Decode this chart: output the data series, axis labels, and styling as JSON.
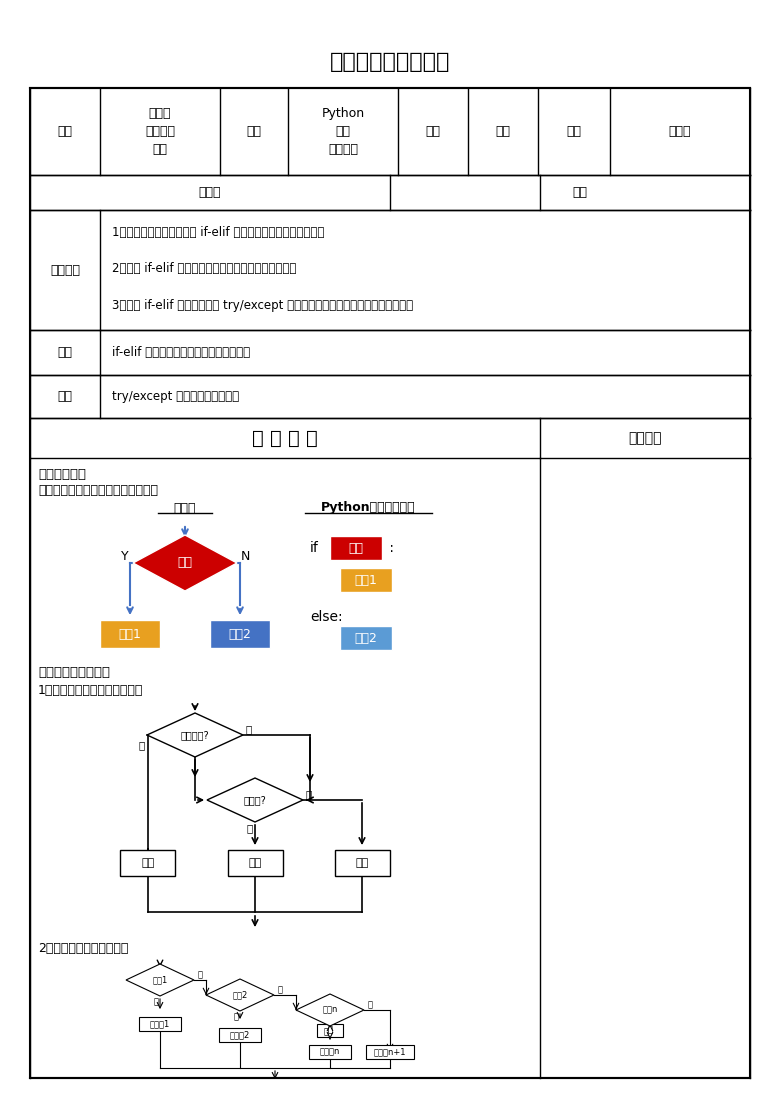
{
  "title": "多分支结构程序设计",
  "cells_r1": [
    "课题",
    "多分支\n结构程序\n设计",
    "单元",
    "Python\n程序\n基本结构",
    "学科",
    "信息",
    "年级",
    "八年级"
  ],
  "teaching_goals": [
    "1、了解多分支结构，理解 if-elif 条件语句的格式和执行流程。",
    "2、理解 if-elif 条件语句解决问题的一般步骤和方法。",
    "3、理解 if-elif 条件语句中的 try/except 语句的格式和功能，并能进行实际应用。"
  ],
  "key_content": "if-elif 条件语句的一般格式与执行流程。",
  "difficulty_content": "try/except 语句的格式和功能。",
  "color_red": "#CC0000",
  "color_orange": "#E8A020",
  "color_blue": "#4472C4",
  "color_light_blue": "#5B9BD5",
  "color_arrow": "#4472C4",
  "bg_white": "#FFFFFF"
}
